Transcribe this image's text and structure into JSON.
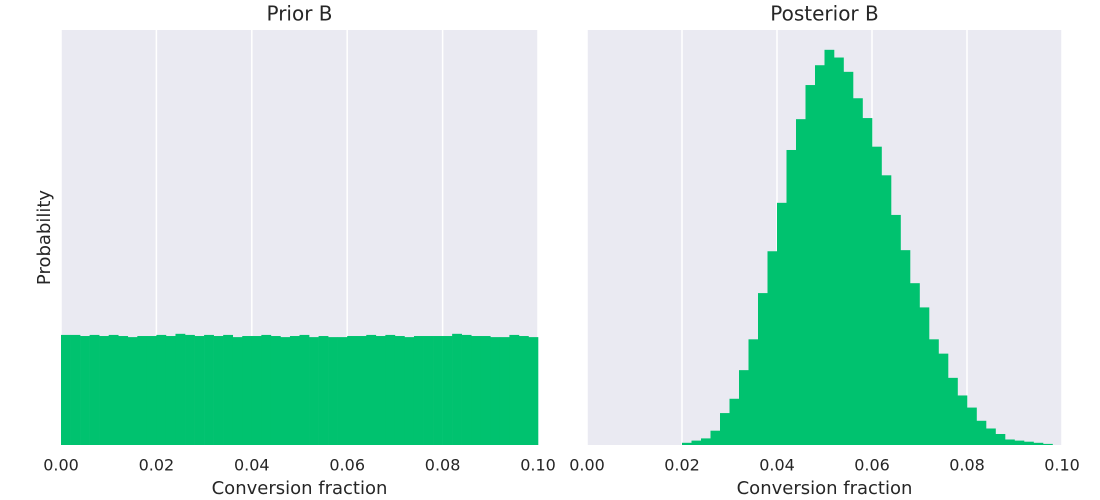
{
  "chart_data": [
    {
      "type": "histogram",
      "title": "Prior B",
      "x_label": "Conversion fraction",
      "y_label": "Probability",
      "color": "#00c26f",
      "grid": true,
      "xlim": [
        0,
        0.1
      ],
      "ylim": [
        0,
        37.7
      ],
      "xticks": [
        {
          "value": 0,
          "label": "0.00"
        },
        {
          "value": 0.02,
          "label": "0.02"
        },
        {
          "value": 0.04,
          "label": "0.04"
        },
        {
          "value": 0.06,
          "label": "0.06"
        },
        {
          "value": 0.08,
          "label": "0.08"
        },
        {
          "value": 0.1,
          "label": "0.10"
        }
      ],
      "bins": [
        0,
        0.002,
        0.004,
        0.006,
        0.008,
        0.01,
        0.012,
        0.014,
        0.016,
        0.018,
        0.02,
        0.022,
        0.024,
        0.026,
        0.028,
        0.03,
        0.032,
        0.034,
        0.036,
        0.038,
        0.04,
        0.042,
        0.044,
        0.046,
        0.048,
        0.05,
        0.052,
        0.054,
        0.056,
        0.058,
        0.06,
        0.062,
        0.064,
        0.066,
        0.068,
        0.07,
        0.072,
        0.074,
        0.076,
        0.078,
        0.08,
        0.082,
        0.084,
        0.086,
        0.088,
        0.09,
        0.092,
        0.094,
        0.096,
        0.098,
        0.1
      ],
      "values": [
        10.0,
        10.0,
        9.9,
        10.0,
        9.9,
        10.0,
        9.9,
        9.8,
        9.9,
        9.9,
        10.0,
        9.9,
        10.1,
        10.0,
        9.9,
        10.0,
        9.9,
        10.0,
        9.8,
        9.9,
        9.9,
        10.0,
        9.9,
        9.8,
        9.9,
        10.0,
        9.8,
        9.9,
        9.8,
        9.8,
        9.9,
        9.9,
        10.0,
        9.9,
        10.0,
        9.9,
        9.8,
        9.9,
        9.9,
        9.9,
        9.9,
        10.1,
        10.0,
        9.9,
        9.9,
        9.8,
        9.8,
        10.0,
        9.9,
        9.8
      ]
    },
    {
      "type": "histogram",
      "title": "Posterior B",
      "x_label": "Conversion fraction",
      "color": "#00c26f",
      "grid": true,
      "xlim": [
        0,
        0.1
      ],
      "ylim": [
        0,
        37.7
      ],
      "xticks": [
        {
          "value": 0,
          "label": "0.00"
        },
        {
          "value": 0.02,
          "label": "0.02"
        },
        {
          "value": 0.04,
          "label": "0.04"
        },
        {
          "value": 0.06,
          "label": "0.06"
        },
        {
          "value": 0.08,
          "label": "0.08"
        },
        {
          "value": 0.1,
          "label": "0.10"
        }
      ],
      "bins": [
        0.02,
        0.022,
        0.024,
        0.026,
        0.028,
        0.03,
        0.032,
        0.034,
        0.036,
        0.038,
        0.04,
        0.042,
        0.044,
        0.046,
        0.048,
        0.05,
        0.052,
        0.054,
        0.056,
        0.058,
        0.06,
        0.062,
        0.064,
        0.066,
        0.068,
        0.07,
        0.072,
        0.074,
        0.076,
        0.078,
        0.08,
        0.082,
        0.084,
        0.086,
        0.088,
        0.09,
        0.092,
        0.094,
        0.096,
        0.098
      ],
      "values": [
        0.2,
        0.4,
        0.6,
        1.3,
        2.9,
        4.2,
        6.8,
        9.6,
        13.8,
        17.6,
        22.0,
        26.8,
        29.6,
        32.7,
        34.5,
        35.9,
        35.2,
        33.9,
        31.5,
        29.7,
        27.1,
        24.5,
        20.9,
        17.7,
        14.7,
        12.5,
        9.6,
        8.3,
        6.1,
        4.5,
        3.4,
        2.2,
        1.5,
        1.0,
        0.5,
        0.4,
        0.3,
        0.2,
        0.1
      ]
    }
  ]
}
